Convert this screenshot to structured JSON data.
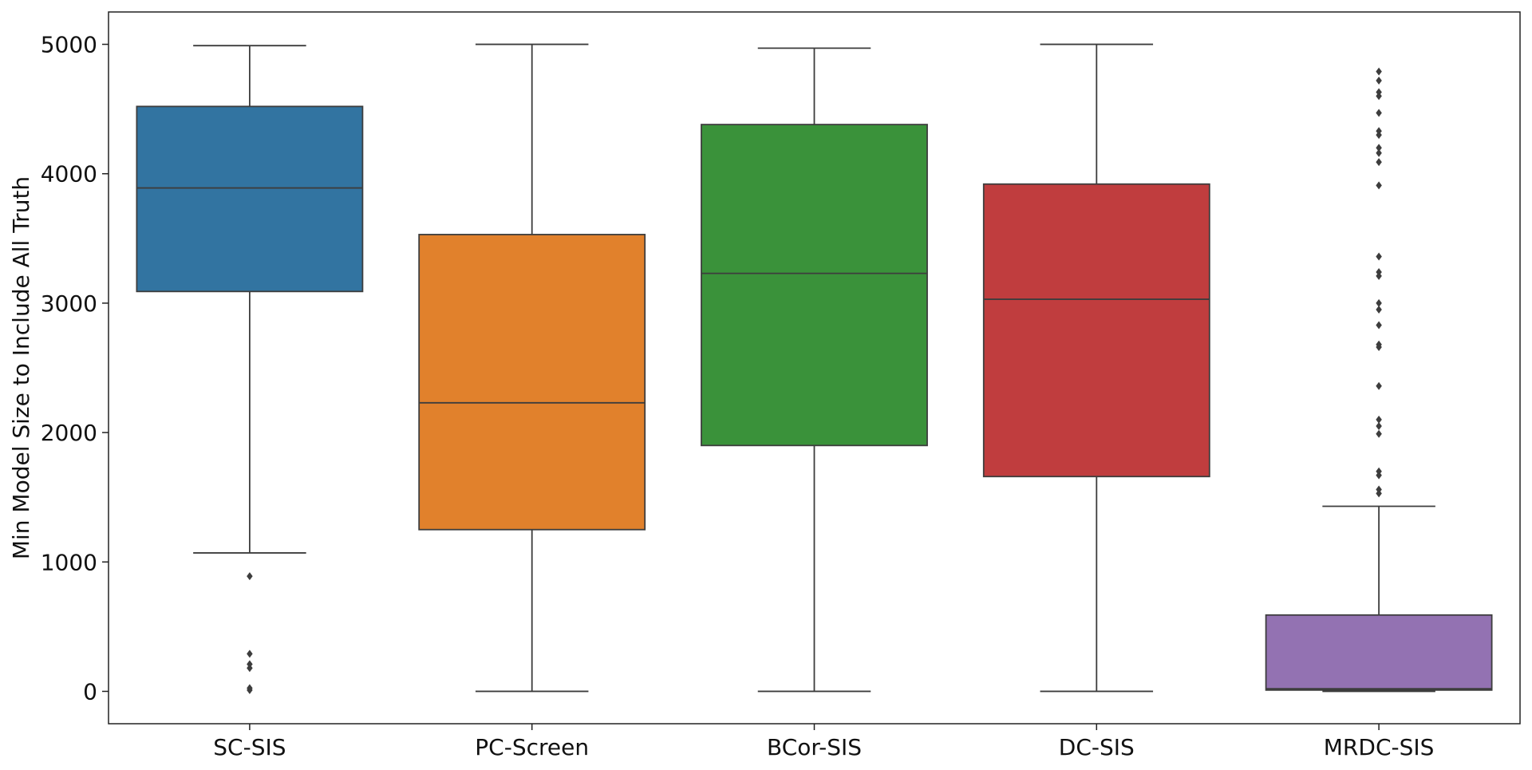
{
  "chart_data": {
    "type": "box",
    "title": "",
    "xlabel": "",
    "ylabel": "Min Model Size to Include All Truth",
    "ylim": [
      -250,
      5250
    ],
    "yticks": [
      0,
      1000,
      2000,
      3000,
      4000,
      5000
    ],
    "grid": false,
    "categories": [
      "SC-SIS",
      "PC-Screen",
      "BCor-SIS",
      "DC-SIS",
      "MRDC-SIS"
    ],
    "series": [
      {
        "label": "SC-SIS",
        "color": "#3274a1",
        "whisker_low": 1070,
        "q1": 3090,
        "median": 3890,
        "q3": 4520,
        "whisker_high": 4990,
        "outliers": [
          890,
          290,
          210,
          180,
          25,
          10
        ]
      },
      {
        "label": "PC-Screen",
        "color": "#e1812c",
        "whisker_low": 0,
        "q1": 1250,
        "median": 2230,
        "q3": 3530,
        "whisker_high": 5000,
        "outliers": []
      },
      {
        "label": "BCor-SIS",
        "color": "#3a923a",
        "whisker_low": 0,
        "q1": 1900,
        "median": 3230,
        "q3": 4380,
        "whisker_high": 4970,
        "outliers": []
      },
      {
        "label": "DC-SIS",
        "color": "#c03d3e",
        "whisker_low": 0,
        "q1": 1660,
        "median": 3030,
        "q3": 3920,
        "whisker_high": 5000,
        "outliers": []
      },
      {
        "label": "MRDC-SIS",
        "color": "#9372b2",
        "whisker_low": 0,
        "q1": 10,
        "median": 20,
        "q3": 590,
        "whisker_high": 1430,
        "outliers": [
          4790,
          4720,
          4630,
          4600,
          4470,
          4330,
          4300,
          4200,
          4160,
          4090,
          3910,
          3360,
          3240,
          3210,
          3000,
          2950,
          2830,
          2680,
          2660,
          2360,
          2100,
          2050,
          1990,
          1700,
          1670,
          1560,
          1530
        ]
      }
    ]
  }
}
